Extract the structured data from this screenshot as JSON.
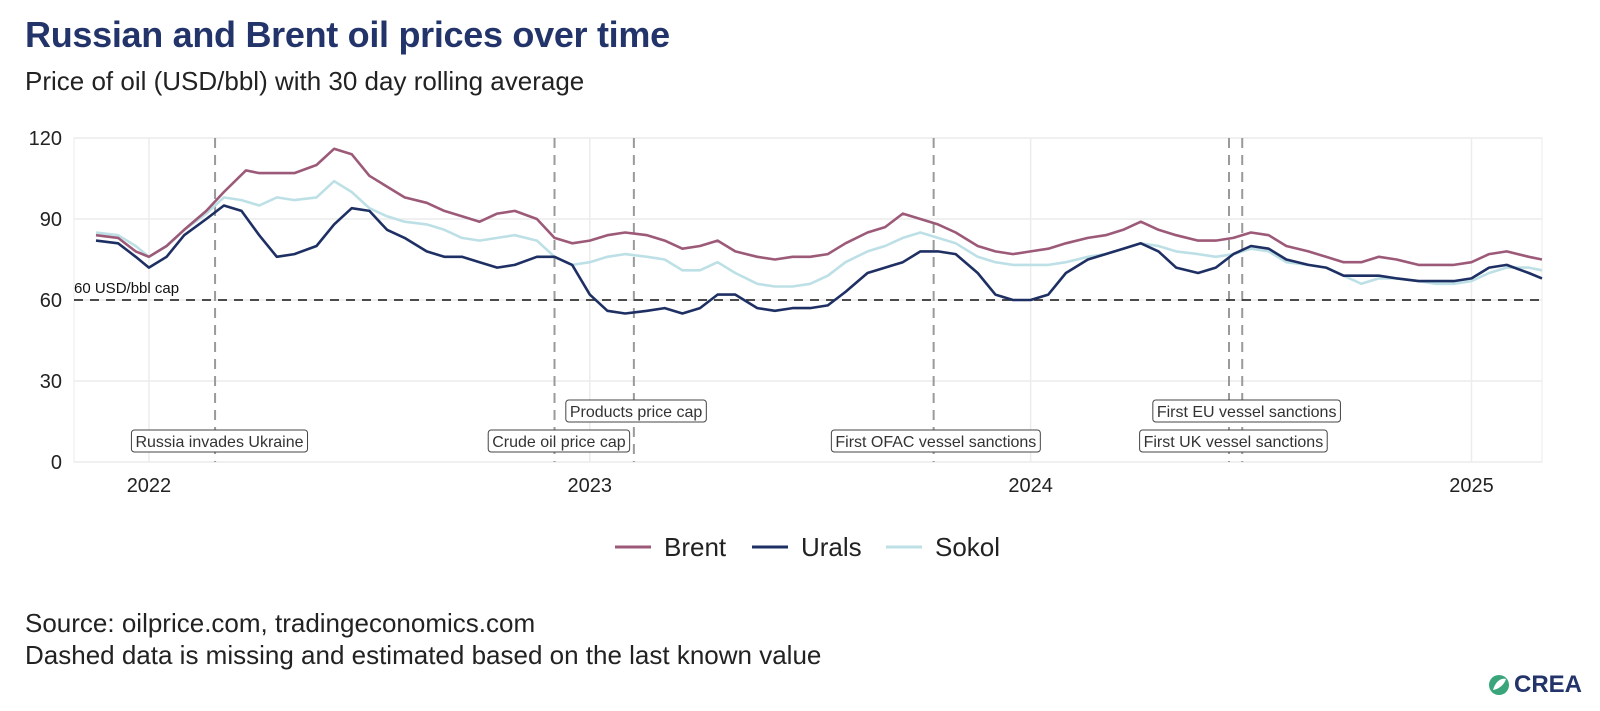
{
  "title": "Russian and Brent oil prices over time",
  "subtitle": "Price of oil (USD/bbl) with 30 day rolling average",
  "source": "Source: oilprice.com, tradingeconomics.com",
  "note": "Dashed data is missing and estimated based on the last known value",
  "logo_text": "CREA",
  "cap_label": "60 USD/bbl cap",
  "chart_data": {
    "type": "line",
    "ylim": [
      0,
      120
    ],
    "yticks": [
      0,
      30,
      60,
      90,
      120
    ],
    "xlim": [
      2021.83,
      2025.16
    ],
    "xticks": [
      {
        "value": 2022,
        "label": "2022"
      },
      {
        "value": 2023,
        "label": "2023"
      },
      {
        "value": 2024,
        "label": "2024"
      },
      {
        "value": 2025,
        "label": "2025"
      }
    ],
    "grid": true,
    "legend_position": "bottom",
    "hline": {
      "value": 60,
      "label": "60 USD/bbl cap"
    },
    "series": [
      {
        "name": "Brent",
        "color": "#9c5a78",
        "points": [
          [
            2021.88,
            84
          ],
          [
            2021.93,
            83
          ],
          [
            2021.97,
            78
          ],
          [
            2022.0,
            76
          ],
          [
            2022.04,
            80
          ],
          [
            2022.08,
            86
          ],
          [
            2022.13,
            93
          ],
          [
            2022.17,
            100
          ],
          [
            2022.22,
            108
          ],
          [
            2022.25,
            107
          ],
          [
            2022.29,
            107
          ],
          [
            2022.33,
            107
          ],
          [
            2022.38,
            110
          ],
          [
            2022.42,
            116
          ],
          [
            2022.46,
            114
          ],
          [
            2022.5,
            106
          ],
          [
            2022.54,
            102
          ],
          [
            2022.58,
            98
          ],
          [
            2022.63,
            96
          ],
          [
            2022.67,
            93
          ],
          [
            2022.71,
            91
          ],
          [
            2022.75,
            89
          ],
          [
            2022.79,
            92
          ],
          [
            2022.83,
            93
          ],
          [
            2022.88,
            90
          ],
          [
            2022.92,
            83
          ],
          [
            2022.96,
            81
          ],
          [
            2023.0,
            82
          ],
          [
            2023.04,
            84
          ],
          [
            2023.08,
            85
          ],
          [
            2023.13,
            84
          ],
          [
            2023.17,
            82
          ],
          [
            2023.21,
            79
          ],
          [
            2023.25,
            80
          ],
          [
            2023.29,
            82
          ],
          [
            2023.33,
            78
          ],
          [
            2023.38,
            76
          ],
          [
            2023.42,
            75
          ],
          [
            2023.46,
            76
          ],
          [
            2023.5,
            76
          ],
          [
            2023.54,
            77
          ],
          [
            2023.58,
            81
          ],
          [
            2023.63,
            85
          ],
          [
            2023.67,
            87
          ],
          [
            2023.71,
            92
          ],
          [
            2023.75,
            90
          ],
          [
            2023.79,
            88
          ],
          [
            2023.83,
            85
          ],
          [
            2023.88,
            80
          ],
          [
            2023.92,
            78
          ],
          [
            2023.96,
            77
          ],
          [
            2024.0,
            78
          ],
          [
            2024.04,
            79
          ],
          [
            2024.08,
            81
          ],
          [
            2024.13,
            83
          ],
          [
            2024.17,
            84
          ],
          [
            2024.21,
            86
          ],
          [
            2024.25,
            89
          ],
          [
            2024.29,
            86
          ],
          [
            2024.33,
            84
          ],
          [
            2024.38,
            82
          ],
          [
            2024.42,
            82
          ],
          [
            2024.46,
            83
          ],
          [
            2024.5,
            85
          ],
          [
            2024.54,
            84
          ],
          [
            2024.58,
            80
          ],
          [
            2024.63,
            78
          ],
          [
            2024.67,
            76
          ],
          [
            2024.71,
            74
          ],
          [
            2024.75,
            74
          ],
          [
            2024.79,
            76
          ],
          [
            2024.83,
            75
          ],
          [
            2024.88,
            73
          ],
          [
            2024.92,
            73
          ],
          [
            2024.96,
            73
          ],
          [
            2025.0,
            74
          ],
          [
            2025.04,
            77
          ],
          [
            2025.08,
            78
          ],
          [
            2025.13,
            76
          ],
          [
            2025.16,
            75
          ]
        ]
      },
      {
        "name": "Urals",
        "color": "#1e2f63",
        "points": [
          [
            2021.88,
            82
          ],
          [
            2021.93,
            81
          ],
          [
            2021.97,
            76
          ],
          [
            2022.0,
            72
          ],
          [
            2022.04,
            76
          ],
          [
            2022.08,
            84
          ],
          [
            2022.13,
            90
          ],
          [
            2022.17,
            95
          ],
          [
            2022.21,
            93
          ],
          [
            2022.25,
            84
          ],
          [
            2022.29,
            76
          ],
          [
            2022.33,
            77
          ],
          [
            2022.38,
            80
          ],
          [
            2022.42,
            88
          ],
          [
            2022.46,
            94
          ],
          [
            2022.5,
            93
          ],
          [
            2022.54,
            86
          ],
          [
            2022.58,
            83
          ],
          [
            2022.63,
            78
          ],
          [
            2022.67,
            76
          ],
          [
            2022.71,
            76
          ],
          [
            2022.75,
            74
          ],
          [
            2022.79,
            72
          ],
          [
            2022.83,
            73
          ],
          [
            2022.88,
            76
          ],
          [
            2022.92,
            76
          ],
          [
            2022.96,
            73
          ],
          [
            2023.0,
            62
          ],
          [
            2023.04,
            56
          ],
          [
            2023.08,
            55
          ],
          [
            2023.13,
            56
          ],
          [
            2023.17,
            57
          ],
          [
            2023.21,
            55
          ],
          [
            2023.25,
            57
          ],
          [
            2023.29,
            62
          ],
          [
            2023.33,
            62
          ],
          [
            2023.38,
            57
          ],
          [
            2023.42,
            56
          ],
          [
            2023.46,
            57
          ],
          [
            2023.5,
            57
          ],
          [
            2023.54,
            58
          ],
          [
            2023.58,
            63
          ],
          [
            2023.63,
            70
          ],
          [
            2023.67,
            72
          ],
          [
            2023.71,
            74
          ],
          [
            2023.75,
            78
          ],
          [
            2023.79,
            78
          ],
          [
            2023.83,
            77
          ],
          [
            2023.88,
            70
          ],
          [
            2023.92,
            62
          ],
          [
            2023.96,
            60
          ],
          [
            2024.0,
            60
          ],
          [
            2024.04,
            62
          ],
          [
            2024.08,
            70
          ],
          [
            2024.13,
            75
          ],
          [
            2024.17,
            77
          ],
          [
            2024.21,
            79
          ],
          [
            2024.25,
            81
          ],
          [
            2024.29,
            78
          ],
          [
            2024.33,
            72
          ],
          [
            2024.38,
            70
          ],
          [
            2024.42,
            72
          ],
          [
            2024.46,
            77
          ],
          [
            2024.5,
            80
          ],
          [
            2024.54,
            79
          ],
          [
            2024.58,
            75
          ],
          [
            2024.63,
            73
          ],
          [
            2024.67,
            72
          ],
          [
            2024.71,
            69
          ],
          [
            2024.75,
            69
          ],
          [
            2024.79,
            69
          ],
          [
            2024.83,
            68
          ],
          [
            2024.88,
            67
          ],
          [
            2024.92,
            67
          ],
          [
            2024.96,
            67
          ],
          [
            2025.0,
            68
          ],
          [
            2025.04,
            72
          ],
          [
            2025.08,
            73
          ],
          [
            2025.13,
            70
          ],
          [
            2025.16,
            68
          ]
        ]
      },
      {
        "name": "Sokol",
        "color": "#bde0e6",
        "points": [
          [
            2021.88,
            85
          ],
          [
            2021.93,
            84
          ],
          [
            2021.97,
            80
          ],
          [
            2022.0,
            76
          ],
          [
            2022.04,
            80
          ],
          [
            2022.08,
            86
          ],
          [
            2022.13,
            92
          ],
          [
            2022.17,
            98
          ],
          [
            2022.21,
            97
          ],
          [
            2022.25,
            95
          ],
          [
            2022.29,
            98
          ],
          [
            2022.33,
            97
          ],
          [
            2022.38,
            98
          ],
          [
            2022.42,
            104
          ],
          [
            2022.46,
            100
          ],
          [
            2022.5,
            94
          ],
          [
            2022.54,
            91
          ],
          [
            2022.58,
            89
          ],
          [
            2022.63,
            88
          ],
          [
            2022.67,
            86
          ],
          [
            2022.71,
            83
          ],
          [
            2022.75,
            82
          ],
          [
            2022.79,
            83
          ],
          [
            2022.83,
            84
          ],
          [
            2022.88,
            82
          ],
          [
            2022.92,
            76
          ],
          [
            2022.96,
            73
          ],
          [
            2023.0,
            74
          ],
          [
            2023.04,
            76
          ],
          [
            2023.08,
            77
          ],
          [
            2023.13,
            76
          ],
          [
            2023.17,
            75
          ],
          [
            2023.21,
            71
          ],
          [
            2023.25,
            71
          ],
          [
            2023.29,
            74
          ],
          [
            2023.33,
            70
          ],
          [
            2023.38,
            66
          ],
          [
            2023.42,
            65
          ],
          [
            2023.46,
            65
          ],
          [
            2023.5,
            66
          ],
          [
            2023.54,
            69
          ],
          [
            2023.58,
            74
          ],
          [
            2023.63,
            78
          ],
          [
            2023.67,
            80
          ],
          [
            2023.71,
            83
          ],
          [
            2023.75,
            85
          ],
          [
            2023.79,
            83
          ],
          [
            2023.83,
            81
          ],
          [
            2023.88,
            76
          ],
          [
            2023.92,
            74
          ],
          [
            2023.96,
            73
          ],
          [
            2024.0,
            73
          ],
          [
            2024.04,
            73
          ],
          [
            2024.08,
            74
          ],
          [
            2024.13,
            76
          ],
          [
            2024.17,
            77
          ],
          [
            2024.21,
            79
          ],
          [
            2024.25,
            81
          ],
          [
            2024.29,
            80
          ],
          [
            2024.33,
            78
          ],
          [
            2024.38,
            77
          ],
          [
            2024.42,
            76
          ],
          [
            2024.46,
            77
          ],
          [
            2024.5,
            79
          ],
          [
            2024.54,
            78
          ],
          [
            2024.58,
            74
          ],
          [
            2024.63,
            73
          ],
          [
            2024.67,
            72
          ],
          [
            2024.71,
            69
          ],
          [
            2024.75,
            66
          ],
          [
            2024.79,
            68
          ],
          [
            2024.83,
            68
          ],
          [
            2024.88,
            67
          ],
          [
            2024.92,
            66
          ],
          [
            2024.96,
            66
          ],
          [
            2025.0,
            67
          ],
          [
            2025.04,
            70
          ],
          [
            2025.08,
            72
          ],
          [
            2025.13,
            72
          ],
          [
            2025.16,
            71
          ]
        ]
      }
    ],
    "events": [
      {
        "x": 2022.15,
        "label": "Russia invades Ukraine",
        "row": 0,
        "label_x": 2022.16
      },
      {
        "x": 2022.92,
        "label": "Crude oil price cap",
        "row": 0,
        "label_x": 2022.93
      },
      {
        "x": 2023.1,
        "label": "Products price cap",
        "row": 1,
        "label_x": 2023.105
      },
      {
        "x": 2023.78,
        "label": "First OFAC vessel sanctions",
        "row": 0,
        "label_x": 2023.785
      },
      {
        "x": 2024.45,
        "label": "First UK vessel sanctions",
        "row": 0,
        "label_x": 2024.46
      },
      {
        "x": 2024.48,
        "label": "First EU vessel sanctions",
        "row": 1,
        "label_x": 2024.49
      }
    ]
  }
}
